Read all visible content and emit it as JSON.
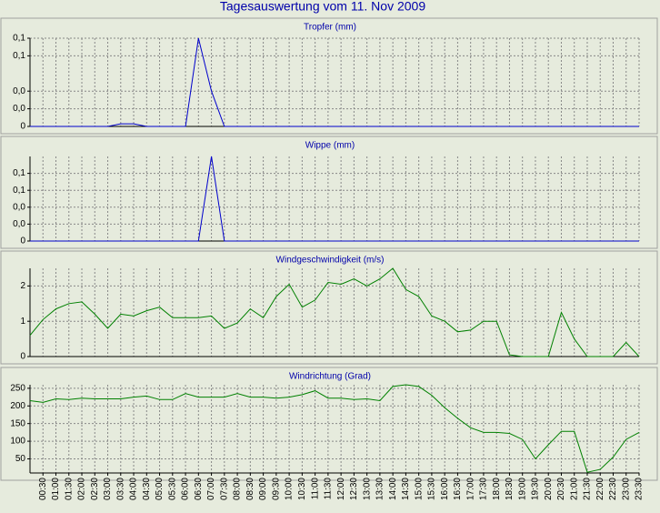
{
  "title": "Tagesauswertung vom 11. Nov 2009",
  "chart_data": [
    {
      "type": "line",
      "title": "Tropfer (mm)",
      "color": "#0000cc",
      "values": [
        0,
        0,
        0,
        0,
        0,
        0,
        0,
        0.003,
        0.003,
        0,
        0,
        0,
        0,
        0.1,
        0.04,
        0,
        0,
        0,
        0,
        0,
        0,
        0,
        0,
        0,
        0,
        0,
        0,
        0,
        0,
        0,
        0,
        0,
        0,
        0,
        0,
        0,
        0,
        0,
        0,
        0,
        0,
        0,
        0,
        0,
        0,
        0,
        0,
        0
      ],
      "ylim": [
        0,
        0.1
      ],
      "yticks": [
        {
          "value": 0.1,
          "label": "0,1"
        },
        {
          "value": 0.08,
          "label": "0,1"
        },
        {
          "value": 0.04,
          "label": "0,0"
        },
        {
          "value": 0.02,
          "label": "0,0"
        },
        0
      ],
      "grid": true
    },
    {
      "type": "line",
      "title": "Wippe (mm)",
      "color": "#0000cc",
      "values": [
        0,
        0,
        0,
        0,
        0,
        0,
        0,
        0,
        0,
        0,
        0,
        0,
        0,
        0,
        0.1,
        0,
        0,
        0,
        0,
        0,
        0,
        0,
        0,
        0,
        0,
        0,
        0,
        0,
        0,
        0,
        0,
        0,
        0,
        0,
        0,
        0,
        0,
        0,
        0,
        0,
        0,
        0,
        0,
        0,
        0,
        0,
        0,
        0
      ],
      "ylim": [
        0,
        0.1
      ],
      "yticks": [
        {
          "value": 0.08,
          "label": "0,1"
        },
        {
          "value": 0.06,
          "label": "0,1"
        },
        {
          "value": 0.04,
          "label": "0,0"
        },
        {
          "value": 0.02,
          "label": "0,0"
        },
        0
      ],
      "grid": true
    },
    {
      "type": "line",
      "title": "Windgeschwindigkeit (m/s)",
      "color": "#008000",
      "values": [
        0.6,
        1.05,
        1.35,
        1.5,
        1.55,
        1.2,
        0.8,
        1.2,
        1.15,
        1.3,
        1.4,
        1.1,
        1.1,
        1.1,
        1.15,
        0.8,
        0.95,
        1.35,
        1.1,
        1.7,
        2.05,
        1.4,
        1.6,
        2.1,
        2.05,
        2.2,
        2.0,
        2.2,
        2.5,
        1.9,
        1.7,
        1.15,
        1.0,
        0.7,
        0.75,
        1.0,
        1.0,
        0.05,
        0,
        0,
        0,
        1.25,
        0.5,
        0,
        0,
        0,
        0.4,
        0
      ],
      "ylim": [
        0,
        2.5
      ],
      "yticks": [
        2,
        1,
        0
      ],
      "grid": true
    },
    {
      "type": "line",
      "title": "Windrichtung (Grad)",
      "color": "#008000",
      "values": [
        215,
        210,
        220,
        218,
        222,
        220,
        220,
        220,
        225,
        228,
        218,
        218,
        235,
        225,
        225,
        225,
        235,
        225,
        225,
        222,
        225,
        232,
        243,
        222,
        222,
        218,
        220,
        215,
        255,
        260,
        255,
        230,
        195,
        165,
        138,
        125,
        125,
        122,
        105,
        50,
        90,
        128,
        128,
        12,
        20,
        55,
        105,
        125
      ],
      "ylim": [
        10,
        260
      ],
      "yticks": [
        250,
        200,
        150,
        100,
        50
      ],
      "grid": true,
      "categories": [
        null,
        "00:30",
        "01:00",
        "01:30",
        "02:00",
        "02:30",
        "03:00",
        "03:30",
        "04:00",
        "04:30",
        "05:00",
        "05:30",
        "06:00",
        "06:30",
        "07:00",
        "07:30",
        "08:00",
        "08:30",
        "09:00",
        "09:30",
        "10:00",
        "10:30",
        "11:00",
        "11:30",
        "12:00",
        "12:30",
        "13:00",
        "13:30",
        "14:00",
        "14:30",
        "15:00",
        "15:30",
        "16:00",
        "16:30",
        "17:00",
        "17:30",
        "18:00",
        "18:30",
        "19:00",
        "19:30",
        "20:00",
        "20:30",
        "21:00",
        "21:30",
        "22:00",
        "22:30",
        "23:00",
        "23:30"
      ]
    }
  ]
}
